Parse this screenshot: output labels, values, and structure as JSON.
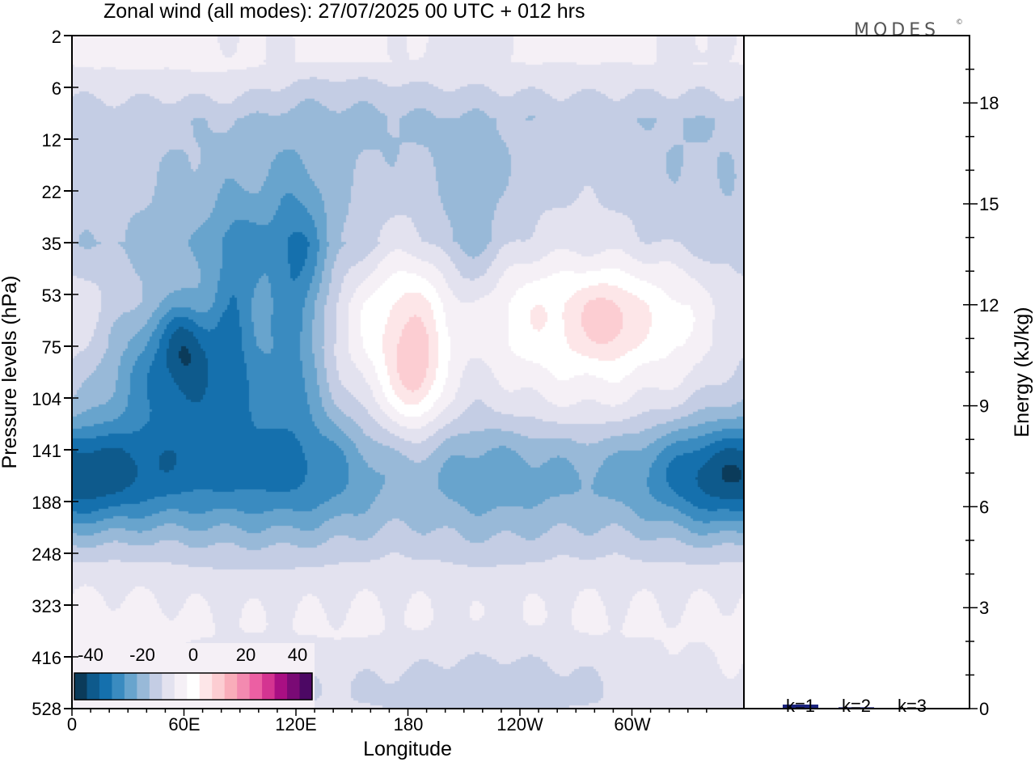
{
  "chart_data": [
    {
      "type": "heatmap",
      "title": "Zonal wind (all modes):  27/07/2025  00 UTC  + 012 hrs",
      "xlabel": "Longitude",
      "ylabel": "Pressure levels (hPa)",
      "x_ticks": [
        "0",
        "60E",
        "120E",
        "180",
        "120W",
        "60W"
      ],
      "x_tick_values": [
        0,
        60,
        120,
        180,
        240,
        300
      ],
      "xlim": [
        0,
        360
      ],
      "y_ticks": [
        "2",
        "6",
        "12",
        "22",
        "35",
        "53",
        "75",
        "104",
        "141",
        "188",
        "248",
        "323",
        "416",
        "528"
      ],
      "colorbar": {
        "tick_labels": [
          "-40",
          "-20",
          "0",
          "20",
          "40"
        ],
        "range": [
          -45,
          45
        ],
        "step": 5,
        "colors": [
          "#0b3b5a",
          "#0e5a8c",
          "#1570ad",
          "#3a8bc0",
          "#68a4cd",
          "#98b9d8",
          "#c4cde4",
          "#e3e2ef",
          "#f5f0f6",
          "#ffffff",
          "#fde6e8",
          "#fccdd2",
          "#f9adba",
          "#f38ab0",
          "#ec5fa3",
          "#d43491",
          "#a90f83",
          "#7a0a75",
          "#4c0864"
        ],
        "placement": "bottom-left inside plot"
      },
      "blobs": [
        {
          "lon": 180,
          "lev": 8.2,
          "rx": 185,
          "ry": 1.5,
          "u": -16
        },
        {
          "lon": 180,
          "lev": 8.6,
          "rx": 140,
          "ry": 1.0,
          "u": -7
        },
        {
          "lon": 10,
          "lev": 8.5,
          "rx": 35,
          "ry": 0.8,
          "u": -13
        },
        {
          "lon": 350,
          "lev": 8.5,
          "rx": 30,
          "ry": 0.8,
          "u": -13
        },
        {
          "lon": 70,
          "lev": 8.3,
          "rx": 30,
          "ry": 1.0,
          "u": -6
        },
        {
          "lon": 120,
          "lev": 8.5,
          "rx": 25,
          "ry": 0.8,
          "u": -5
        },
        {
          "lon": 180,
          "lev": 12.8,
          "rx": 140,
          "ry": 0.7,
          "u": -9
        },
        {
          "lon": 240,
          "lev": 12.6,
          "rx": 40,
          "ry": 0.7,
          "u": -4
        },
        {
          "lon": 55,
          "lev": 6.3,
          "rx": 30,
          "ry": 0.9,
          "u": -20
        },
        {
          "lon": 60,
          "lev": 5.9,
          "rx": 8,
          "ry": 0.5,
          "u": -10
        },
        {
          "lon": 88,
          "lev": 4.9,
          "rx": 9,
          "ry": 1.1,
          "u": -12
        },
        {
          "lon": 120,
          "lev": 5.0,
          "rx": 12,
          "ry": 1.5,
          "u": -17
        },
        {
          "lon": 84,
          "lev": 5.8,
          "rx": 35,
          "ry": 1.6,
          "u": -6
        },
        {
          "lon": 180,
          "lev": 6.2,
          "rx": 20,
          "ry": 1.9,
          "u": 14
        },
        {
          "lon": 184,
          "lev": 6.6,
          "rx": 8,
          "ry": 0.6,
          "u": 10
        },
        {
          "lon": 212,
          "lev": 4.7,
          "rx": 13,
          "ry": 1.4,
          "u": -8
        },
        {
          "lon": 275,
          "lev": 5.4,
          "rx": 50,
          "ry": 1.4,
          "u": 12
        },
        {
          "lon": 287,
          "lev": 5.5,
          "rx": 10,
          "ry": 0.5,
          "u": 8
        },
        {
          "lon": 250,
          "lev": 7.3,
          "rx": 75,
          "ry": 0.5,
          "u": 4
        },
        {
          "lon": 240,
          "lev": 2.5,
          "rx": 110,
          "ry": 2.5,
          "u": 2
        },
        {
          "lon": 80,
          "lev": 1.0,
          "rx": 30,
          "ry": 1.3,
          "u": 4
        },
        {
          "lon": 20,
          "lev": 1.5,
          "rx": 20,
          "ry": 1.2,
          "u": 2
        },
        {
          "lon": 20,
          "lev": 7.4,
          "rx": 25,
          "ry": 0.4,
          "u": 1.5
        },
        {
          "lon": 350,
          "lev": 5.6,
          "rx": 10,
          "ry": 0.9,
          "u": -4
        },
        {
          "lon": 130,
          "lev": 1.7,
          "rx": 60,
          "ry": 1.5,
          "u": -3
        },
        {
          "lon": 250,
          "lev": 13.4,
          "rx": 30,
          "ry": 0.5,
          "u": 3
        },
        {
          "lon": 150,
          "lev": 13.3,
          "rx": 25,
          "ry": 0.4,
          "u": 2
        }
      ]
    },
    {
      "type": "bar",
      "ylabel": "Energy (kJ/kg)",
      "categories": [
        "k=1",
        "k=2",
        "k=3"
      ],
      "values": [
        0.12,
        0.04,
        0.01
      ],
      "ylim": [
        0,
        20
      ],
      "y_ticks": [
        0,
        3,
        6,
        9,
        12,
        15,
        18
      ],
      "bar_color": "#1a237e"
    }
  ],
  "logo": "MODES",
  "logo_mark": "©"
}
